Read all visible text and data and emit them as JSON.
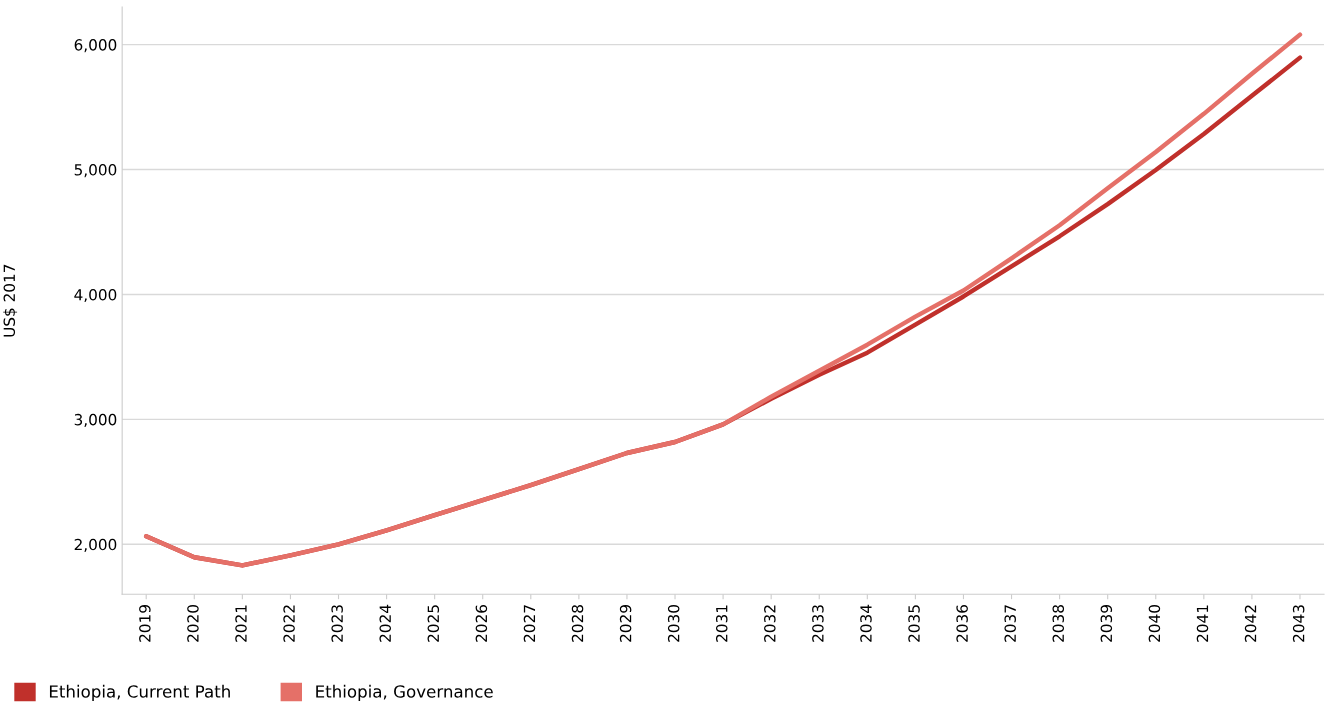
{
  "chart_data": {
    "type": "line",
    "ylabel": "US$ 2017",
    "categories": [
      "2019",
      "2020",
      "2021",
      "2022",
      "2023",
      "2024",
      "2025",
      "2026",
      "2027",
      "2028",
      "2029",
      "2030",
      "2031",
      "2032",
      "2033",
      "2034",
      "2035",
      "2036",
      "2037",
      "2038",
      "2039",
      "2040",
      "2041",
      "2042",
      "2043"
    ],
    "series": [
      {
        "name": "Ethiopia, Current Path",
        "color": "#c0302b",
        "values": [
          2064,
          1896,
          1831,
          1912,
          2000,
          2112,
          2233,
          2353,
          2474,
          2602,
          2731,
          2819,
          2960,
          3165,
          3357,
          3534,
          3759,
          3984,
          4225,
          4466,
          4723,
          4996,
          5285,
          5590,
          5896
        ]
      },
      {
        "name": "Ethiopia, Governance",
        "color": "#e57068",
        "values": [
          2064,
          1896,
          1831,
          1912,
          2000,
          2112,
          2233,
          2353,
          2474,
          2602,
          2731,
          2819,
          2960,
          3181,
          3390,
          3598,
          3823,
          4032,
          4289,
          4554,
          4851,
          5141,
          5446,
          5767,
          6080
        ]
      }
    ],
    "ylim": [
      1600,
      6300
    ],
    "yticks": [
      {
        "value": 2000,
        "label": "2,000"
      },
      {
        "value": 3000,
        "label": "3,000"
      },
      {
        "value": 4000,
        "label": "4,000"
      },
      {
        "value": 5000,
        "label": "5,000"
      },
      {
        "value": 6000,
        "label": "6,000"
      }
    ],
    "grid": "y",
    "legend": "bottom left"
  }
}
